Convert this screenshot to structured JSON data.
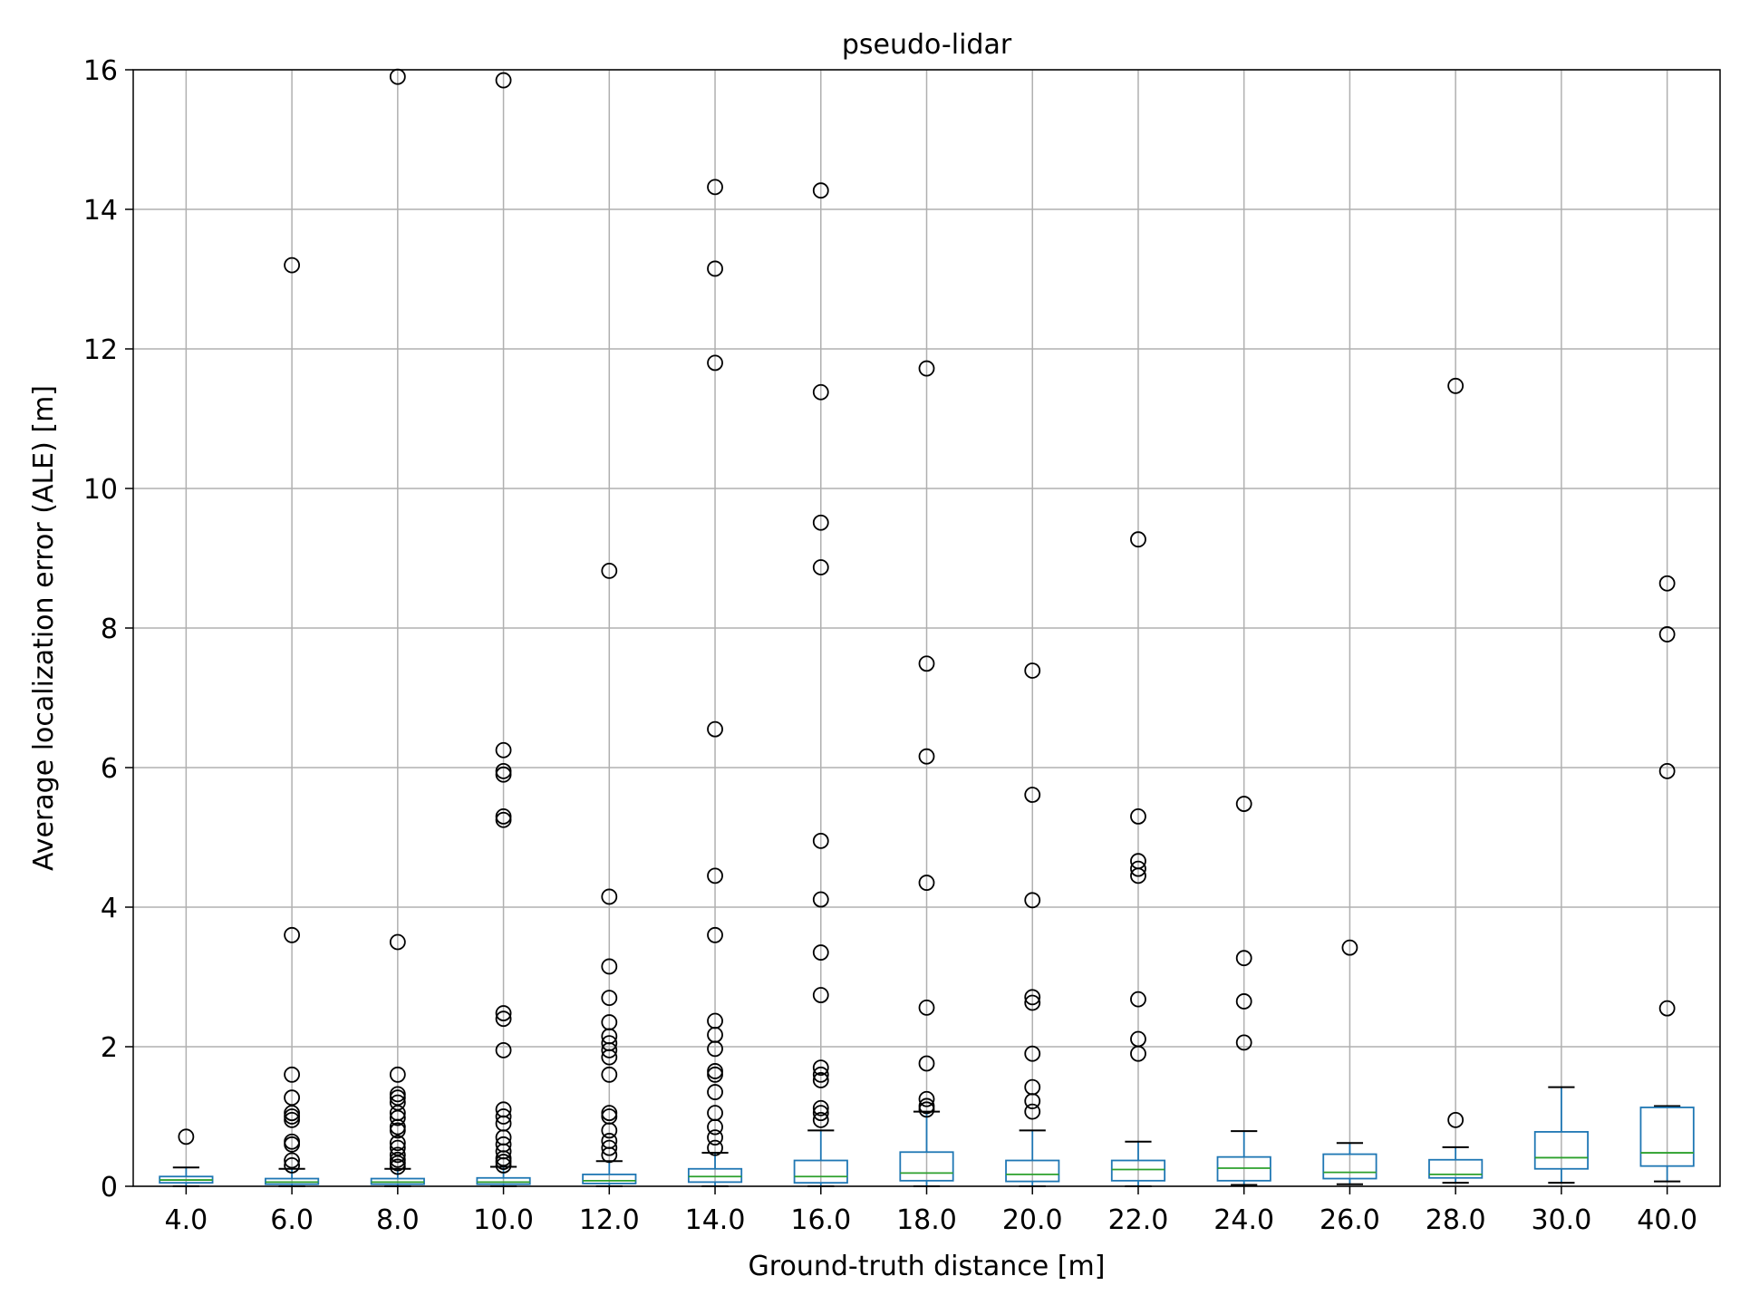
{
  "chart_data": {
    "type": "box",
    "title": "pseudo-lidar",
    "xlabel": "Ground-truth distance [m]",
    "ylabel": "Average localization error (ALE) [m]",
    "ylim": [
      0,
      16
    ],
    "yticks": [
      0,
      2,
      4,
      6,
      8,
      10,
      12,
      14,
      16
    ],
    "grid": true,
    "colors": {
      "box": "#1f77b4",
      "median": "#2ca02c",
      "whisker_cap": "#000000",
      "outlier": "#000000",
      "grid": "#b0b0b0"
    },
    "categories": [
      "4.0",
      "6.0",
      "8.0",
      "10.0",
      "12.0",
      "14.0",
      "16.0",
      "18.0",
      "20.0",
      "22.0",
      "24.0",
      "26.0",
      "28.0",
      "30.0",
      "40.0"
    ],
    "boxes": [
      {
        "category": "4.0",
        "whislo": 0.0,
        "q1": 0.05,
        "med": 0.09,
        "q3": 0.14,
        "whishi": 0.27,
        "fliers": [
          0.71
        ]
      },
      {
        "category": "6.0",
        "whislo": 0.0,
        "q1": 0.03,
        "med": 0.06,
        "q3": 0.11,
        "whishi": 0.25,
        "fliers": [
          0.3,
          0.37,
          0.6,
          0.64,
          0.95,
          1.0,
          1.05,
          1.27,
          1.6,
          3.6,
          13.2
        ]
      },
      {
        "category": "8.0",
        "whislo": 0.0,
        "q1": 0.03,
        "med": 0.06,
        "q3": 0.11,
        "whishi": 0.25,
        "fliers": [
          0.28,
          0.33,
          0.38,
          0.45,
          0.55,
          0.62,
          0.8,
          0.85,
          0.98,
          1.05,
          1.2,
          1.27,
          1.32,
          1.6,
          3.5,
          15.9
        ]
      },
      {
        "category": "10.0",
        "whislo": 0.0,
        "q1": 0.03,
        "med": 0.06,
        "q3": 0.12,
        "whishi": 0.28,
        "fliers": [
          0.3,
          0.35,
          0.4,
          0.5,
          0.6,
          0.7,
          0.9,
          1.0,
          1.1,
          1.95,
          2.4,
          2.48,
          5.25,
          5.3,
          5.9,
          5.95,
          6.25,
          15.85
        ]
      },
      {
        "category": "12.0",
        "whislo": 0.0,
        "q1": 0.04,
        "med": 0.08,
        "q3": 0.17,
        "whishi": 0.36,
        "fliers": [
          0.45,
          0.55,
          0.65,
          0.8,
          1.0,
          1.05,
          1.6,
          1.85,
          1.95,
          2.05,
          2.15,
          2.35,
          2.7,
          3.15,
          4.15,
          8.82
        ]
      },
      {
        "category": "14.0",
        "whislo": 0.0,
        "q1": 0.06,
        "med": 0.14,
        "q3": 0.25,
        "whishi": 0.48,
        "fliers": [
          0.55,
          0.7,
          0.85,
          1.05,
          1.35,
          1.6,
          1.65,
          1.97,
          2.17,
          2.37,
          3.6,
          4.45,
          6.55,
          11.8,
          13.15,
          14.32
        ]
      },
      {
        "category": "16.0",
        "whislo": 0.0,
        "q1": 0.05,
        "med": 0.14,
        "q3": 0.37,
        "whishi": 0.8,
        "fliers": [
          0.95,
          1.05,
          1.12,
          1.52,
          1.6,
          1.7,
          2.74,
          3.35,
          4.11,
          4.95,
          8.87,
          9.51,
          11.38,
          14.27
        ]
      },
      {
        "category": "18.0",
        "whislo": 0.0,
        "q1": 0.08,
        "med": 0.19,
        "q3": 0.49,
        "whishi": 1.07,
        "fliers": [
          1.1,
          1.15,
          1.25,
          1.76,
          2.56,
          4.35,
          6.16,
          7.49,
          11.72
        ]
      },
      {
        "category": "20.0",
        "whislo": 0.0,
        "q1": 0.07,
        "med": 0.17,
        "q3": 0.37,
        "whishi": 0.8,
        "fliers": [
          1.07,
          1.22,
          1.42,
          1.9,
          2.63,
          2.71,
          4.1,
          5.61,
          7.39
        ]
      },
      {
        "category": "22.0",
        "whislo": 0.0,
        "q1": 0.08,
        "med": 0.24,
        "q3": 0.37,
        "whishi": 0.64,
        "fliers": [
          1.9,
          2.11,
          2.68,
          4.45,
          4.55,
          4.66,
          5.3,
          9.27
        ]
      },
      {
        "category": "24.0",
        "whislo": 0.02,
        "q1": 0.08,
        "med": 0.26,
        "q3": 0.42,
        "whishi": 0.79,
        "fliers": [
          2.06,
          2.65,
          3.27,
          5.48
        ]
      },
      {
        "category": "26.0",
        "whislo": 0.03,
        "q1": 0.11,
        "med": 0.2,
        "q3": 0.46,
        "whishi": 0.62,
        "fliers": [
          3.42
        ]
      },
      {
        "category": "28.0",
        "whislo": 0.05,
        "q1": 0.12,
        "med": 0.17,
        "q3": 0.38,
        "whishi": 0.56,
        "fliers": [
          0.95,
          11.47
        ]
      },
      {
        "category": "30.0",
        "whislo": 0.05,
        "q1": 0.25,
        "med": 0.41,
        "q3": 0.78,
        "whishi": 1.42,
        "fliers": []
      },
      {
        "category": "40.0",
        "whislo": 0.07,
        "q1": 0.29,
        "med": 0.48,
        "q3": 1.13,
        "whishi": 1.15,
        "fliers": [
          2.55,
          5.95,
          7.91,
          8.64
        ]
      }
    ]
  }
}
